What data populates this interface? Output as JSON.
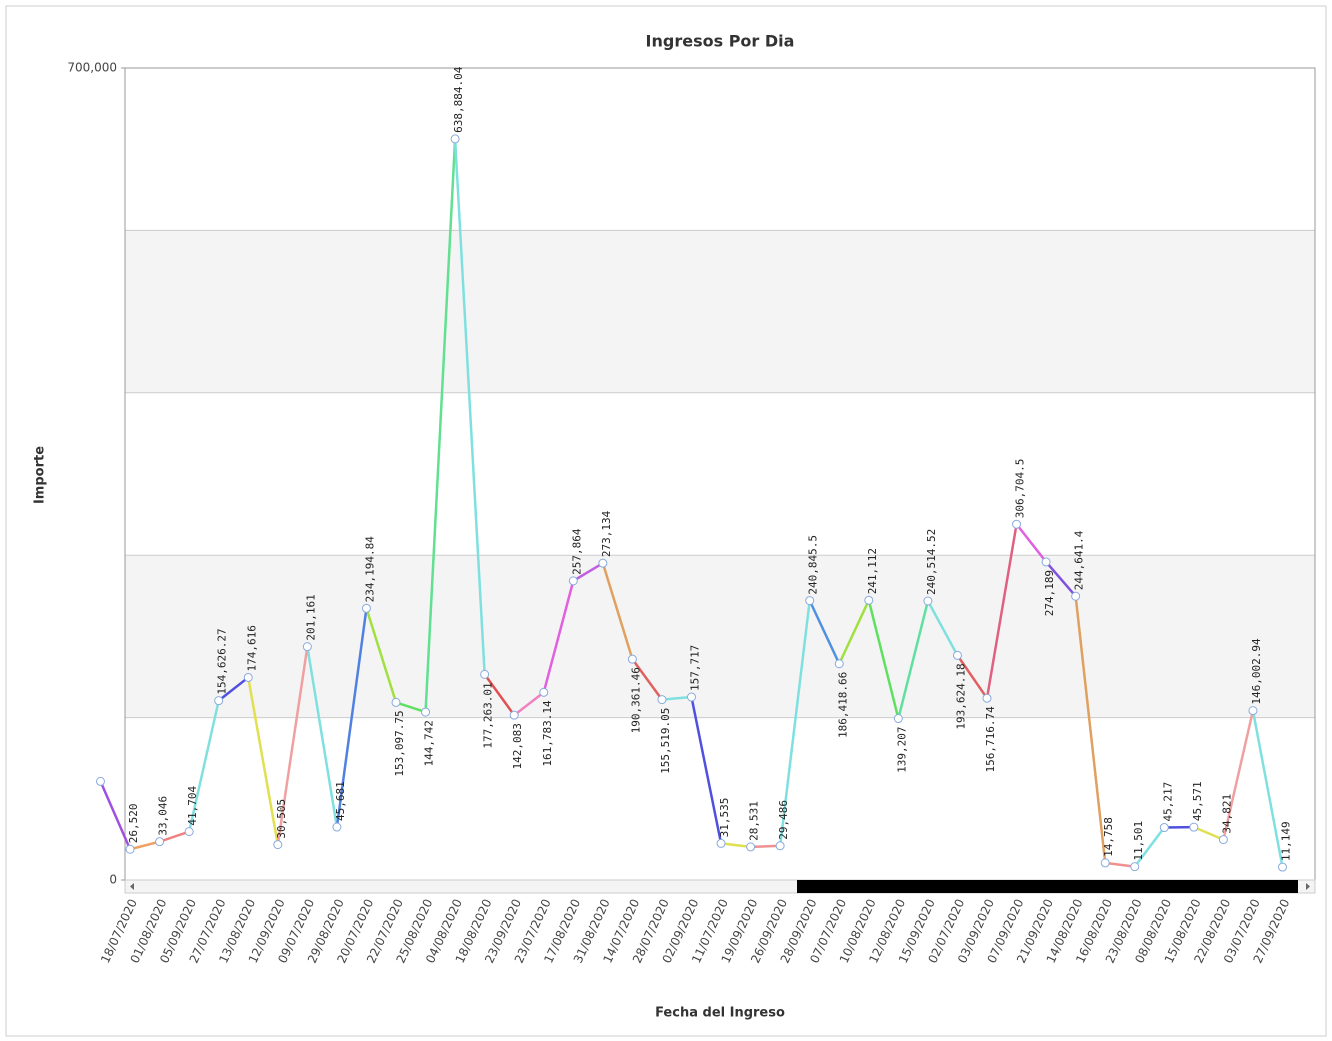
{
  "chart_data": {
    "type": "line",
    "title": "Ingresos Por Dia",
    "x_label": "Fecha del Ingreso",
    "y_label": "Importe",
    "categories": [
      null,
      "18/07/2020",
      "01/08/2020",
      "05/09/2020",
      "27/07/2020",
      "13/08/2020",
      "12/09/2020",
      "09/07/2020",
      "29/08/2020",
      "20/07/2020",
      "22/07/2020",
      "25/08/2020",
      "04/08/2020",
      "18/08/2020",
      "23/09/2020",
      "23/07/2020",
      "17/08/2020",
      "31/08/2020",
      "14/07/2020",
      "28/07/2020",
      "02/09/2020",
      "11/07/2020",
      "19/09/2020",
      "26/09/2020",
      "28/09/2020",
      "07/07/2020",
      "10/08/2020",
      "12/08/2020",
      "15/09/2020",
      "02/07/2020",
      "03/09/2020",
      "07/09/2020",
      "21/09/2020",
      "14/08/2020",
      "16/08/2020",
      "23/08/2020",
      "08/08/2020",
      "15/08/2020",
      "22/08/2020",
      "03/07/2020",
      "27/09/2020"
    ],
    "values": [
      85000,
      26520,
      33046,
      41704,
      154626.27,
      174616,
      30505,
      201161,
      45681,
      234194.84,
      153097.75,
      144742,
      638884.04,
      177263.01,
      142083,
      161783.14,
      257864,
      273134,
      190361.46,
      155519.05,
      157717,
      31535,
      28531,
      29486,
      240845.5,
      186418.66,
      241112,
      139207,
      240514.52,
      193624.18,
      156716.74,
      306704.5,
      274189,
      244641.4,
      14758,
      11501,
      45217,
      45571,
      34821,
      146002.94,
      11149
    ],
    "value_labels": [
      null,
      "26,520",
      "33,046",
      "41,704",
      "154,626.27",
      "174,616",
      "30,505",
      "201,161",
      "45,681",
      "234,194.84",
      "153,097.75",
      "144,742",
      "638,884.04",
      "177,263.01",
      "142,083",
      "161,783.14",
      "257,864",
      "273,134",
      "190,361.46",
      "155,519.05",
      "157,717",
      "31,535",
      "28,531",
      "29,486",
      "240,845.5",
      "186,418.66",
      "241,112",
      "139,207",
      "240,514.52",
      "193,624.18",
      "156,716.74",
      "306,704.5",
      "274,189",
      "244,641.4",
      "14,758",
      "11,501",
      "45,217",
      "45,571",
      "34,821",
      "146,002.94",
      "11,149"
    ],
    "segment_colors": [
      "#a050e0",
      "#f0a060",
      "#f08080",
      "#80e0e0",
      "#5050e0",
      "#e0e050",
      "#f0a0a0",
      "#80e0e0",
      "#5080e0",
      "#a0e040",
      "#60e060",
      "#60e090",
      "#80e0e0",
      "#e05050",
      "#f080c0",
      "#e060e0",
      "#c060e0",
      "#e0a060",
      "#e06060",
      "#80e0e0",
      "#5050e0",
      "#e0e050",
      "#f09090",
      "#80e0e0",
      "#5090e0",
      "#a0e040",
      "#60e060",
      "#60e0a0",
      "#80e0e0",
      "#e06060",
      "#e06080",
      "#e060e0",
      "#8050e0",
      "#e0a060",
      "#f09090",
      "#80e0e0",
      "#5050e0",
      "#e0e050",
      "#f0a0a0",
      "#80e0e0"
    ],
    "ylim": [
      0,
      700000
    ],
    "yticks": [
      0,
      {
        "value": 700000,
        "label": "700,000"
      }
    ],
    "grid_lines": [
      140000,
      280000,
      420000,
      560000
    ]
  }
}
